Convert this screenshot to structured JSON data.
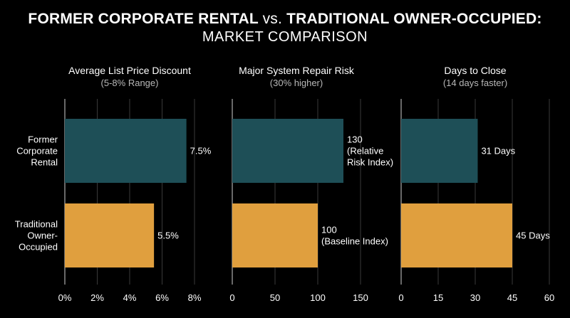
{
  "title": {
    "part1": "FORMER CORPORATE RENTAL",
    "vs": "vs.",
    "part2": "TRADITIONAL OWNER-OCCUPIED:",
    "line2": "MARKET COMPARISON"
  },
  "colors": {
    "background": "#000000",
    "former": "#1e4f57",
    "traditional": "#e09f3e",
    "text": "#ffffff",
    "muted": "#b8b8b8",
    "grid": "#3a3a3a"
  },
  "chart_data": [
    {
      "type": "bar",
      "orientation": "horizontal",
      "title": "Average List Price Discount",
      "subtitle": "(5-8% Range)",
      "categories": [
        "Former Corporate Rental",
        "Traditional Owner-Occupied"
      ],
      "category_labels": [
        [
          "Former",
          "Corporate",
          "Rental"
        ],
        [
          "Traditional",
          "Owner-",
          "Occupied"
        ]
      ],
      "values": [
        7.5,
        5.5
      ],
      "data_labels": [
        [
          "7.5%"
        ],
        [
          "5.5%"
        ]
      ],
      "xlim": [
        0,
        8
      ],
      "xticks": [
        0,
        2,
        4,
        6,
        8
      ],
      "xtick_labels": [
        "0%",
        "2%",
        "4%",
        "6%",
        "8%"
      ],
      "grid": true
    },
    {
      "type": "bar",
      "orientation": "horizontal",
      "title": "Major System Repair Risk",
      "subtitle": "(30% higher)",
      "categories": [
        "Former Corporate Rental",
        "Traditional Owner-Occupied"
      ],
      "values": [
        130,
        100
      ],
      "data_labels": [
        [
          "130",
          "(Relative",
          "Risk Index)"
        ],
        [
          "100",
          "(Baseline Index)"
        ]
      ],
      "xlim": [
        0,
        150
      ],
      "xticks": [
        0,
        50,
        100,
        150
      ],
      "xtick_labels": [
        "0",
        "50",
        "100",
        "150"
      ],
      "grid": true
    },
    {
      "type": "bar",
      "orientation": "horizontal",
      "title": "Days to Close",
      "subtitle": "(14 days faster)",
      "categories": [
        "Former Corporate Rental",
        "Traditional Owner-Occupied"
      ],
      "values": [
        31,
        45
      ],
      "data_labels": [
        [
          "31 Days"
        ],
        [
          "45 Days"
        ]
      ],
      "xlim": [
        0,
        60
      ],
      "xticks": [
        0,
        15,
        30,
        45,
        60
      ],
      "xtick_labels": [
        "0",
        "15",
        "30",
        "45",
        "60"
      ],
      "grid": true
    }
  ]
}
